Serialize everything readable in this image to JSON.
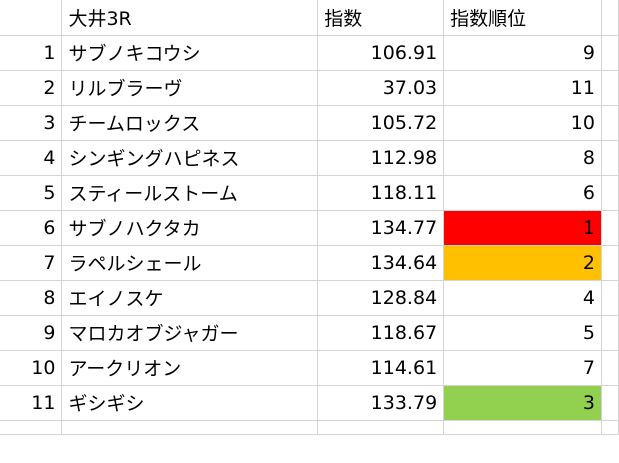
{
  "sheet": {
    "header": {
      "race": "大井3R",
      "score": "指数",
      "rank": "指数順位"
    },
    "rows": [
      {
        "num": "1",
        "horse": "サブノキコウシ",
        "score": "106.91",
        "rank": "9"
      },
      {
        "num": "2",
        "horse": "リルブラーヴ",
        "score": "37.03",
        "rank": "11"
      },
      {
        "num": "3",
        "horse": "チームロックス",
        "score": "105.72",
        "rank": "10"
      },
      {
        "num": "4",
        "horse": "シンギングハピネス",
        "score": "112.98",
        "rank": "8"
      },
      {
        "num": "5",
        "horse": "スティールストーム",
        "score": "118.11",
        "rank": "6"
      },
      {
        "num": "6",
        "horse": "サブノハクタカ",
        "score": "134.77",
        "rank": "1"
      },
      {
        "num": "7",
        "horse": "ラペルシェール",
        "score": "134.64",
        "rank": "2"
      },
      {
        "num": "8",
        "horse": "エイノスケ",
        "score": "128.84",
        "rank": "4"
      },
      {
        "num": "9",
        "horse": "マロカオブジャガー",
        "score": "118.67",
        "rank": "5"
      },
      {
        "num": "10",
        "horse": "アークリオン",
        "score": "114.61",
        "rank": "7"
      },
      {
        "num": "11",
        "horse": "ギシギシ",
        "score": "133.79",
        "rank": "3"
      }
    ],
    "highlight_colors": {
      "rank_1": "#ff0000",
      "rank_2": "#ffc000",
      "rank_3": "#92d050"
    }
  }
}
